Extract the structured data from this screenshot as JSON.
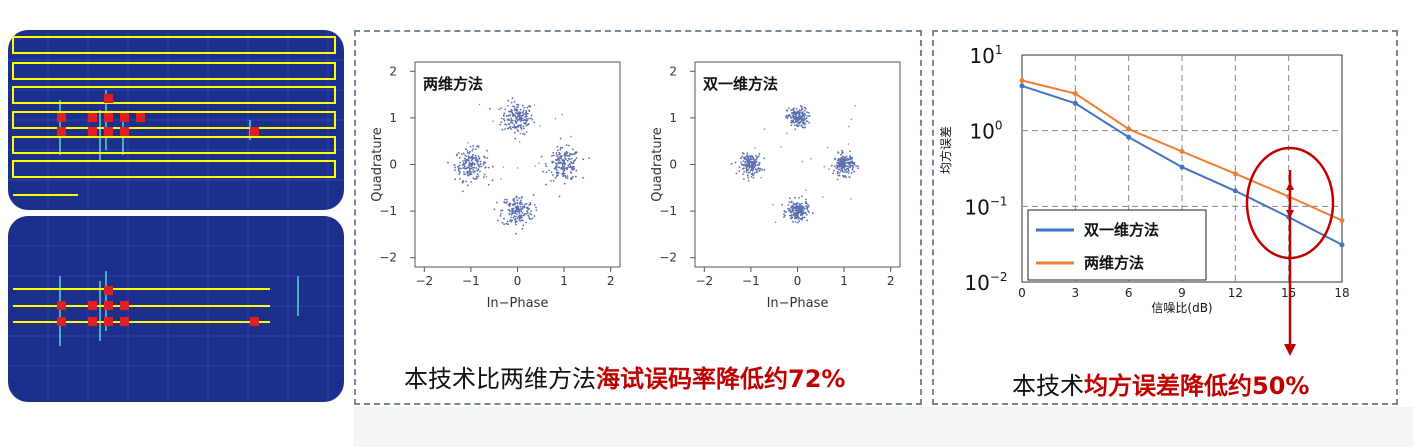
{
  "scatter_left": {
    "title": "两维方法"
  },
  "scatter_right": {
    "title": "双一维方法"
  },
  "caption_left": {
    "prefix": "本技术比两维方法",
    "highlight": "海试误码率降低约",
    "value": "72%"
  },
  "caption_right": {
    "prefix": "本技术",
    "highlight": "均方误差降低约",
    "value": "50%"
  },
  "colors": {
    "accent_red": "#c00000",
    "series_blue": "#4472c4",
    "series_orange": "#ed7d31",
    "tile_bg": "#1d2f8c",
    "track_yellow": "#ffff00"
  },
  "chart_data": [
    {
      "type": "scatter",
      "title": "两维方法",
      "xlabel": "In−Phase",
      "ylabel": "Quadrature",
      "xlim": [
        -2.2,
        2.2
      ],
      "ylim": [
        -2.2,
        2.2
      ],
      "xticks": [
        "−2",
        "−1",
        "0",
        "1",
        "2"
      ],
      "yticks": [
        "2",
        "1",
        "0",
        "−1",
        "−2"
      ],
      "clusters": [
        {
          "x": 0,
          "y": 1,
          "spread": 0.17
        },
        {
          "x": -1,
          "y": 0,
          "spread": 0.17
        },
        {
          "x": 1,
          "y": 0,
          "spread": 0.17
        },
        {
          "x": 0,
          "y": -1,
          "spread": 0.17
        }
      ]
    },
    {
      "type": "scatter",
      "title": "双一维方法",
      "xlabel": "In−Phase",
      "ylabel": "Quadrature",
      "xlim": [
        -2.2,
        2.2
      ],
      "ylim": [
        -2.2,
        2.2
      ],
      "xticks": [
        "−2",
        "−1",
        "0",
        "1",
        "2"
      ],
      "yticks": [
        "2",
        "1",
        "0",
        "−1",
        "−2"
      ],
      "clusters": [
        {
          "x": 0,
          "y": 1,
          "spread": 0.11
        },
        {
          "x": -1,
          "y": 0,
          "spread": 0.11
        },
        {
          "x": 1,
          "y": 0,
          "spread": 0.11
        },
        {
          "x": 0,
          "y": -1,
          "spread": 0.11
        }
      ]
    },
    {
      "type": "line",
      "xlabel": "信噪比(dB)",
      "ylabel": "均方误差",
      "x": [
        0,
        3,
        6,
        9,
        12,
        15,
        18
      ],
      "xticks": [
        "0",
        "3",
        "6",
        "9",
        "12",
        "15",
        "18"
      ],
      "yticks": [
        {
          "base": "10",
          "exp": "1"
        },
        {
          "base": "10",
          "exp": "0"
        },
        {
          "base": "10",
          "exp": "−1"
        },
        {
          "base": "10",
          "exp": "−2"
        }
      ],
      "yscale": "log",
      "ylim": [
        0.01,
        10
      ],
      "grid": true,
      "legend_position": "bottom-left",
      "series": [
        {
          "name": "双一维方法",
          "color": "#4472c4",
          "values": [
            3.9,
            2.3,
            0.82,
            0.33,
            0.16,
            0.072,
            0.031
          ]
        },
        {
          "name": "两维方法",
          "color": "#ed7d31",
          "values": [
            4.6,
            3.1,
            1.05,
            0.53,
            0.27,
            0.135,
            0.065
          ]
        }
      ],
      "annotation": {
        "x": 15,
        "from": 0.135,
        "to": 0.072
      }
    }
  ]
}
